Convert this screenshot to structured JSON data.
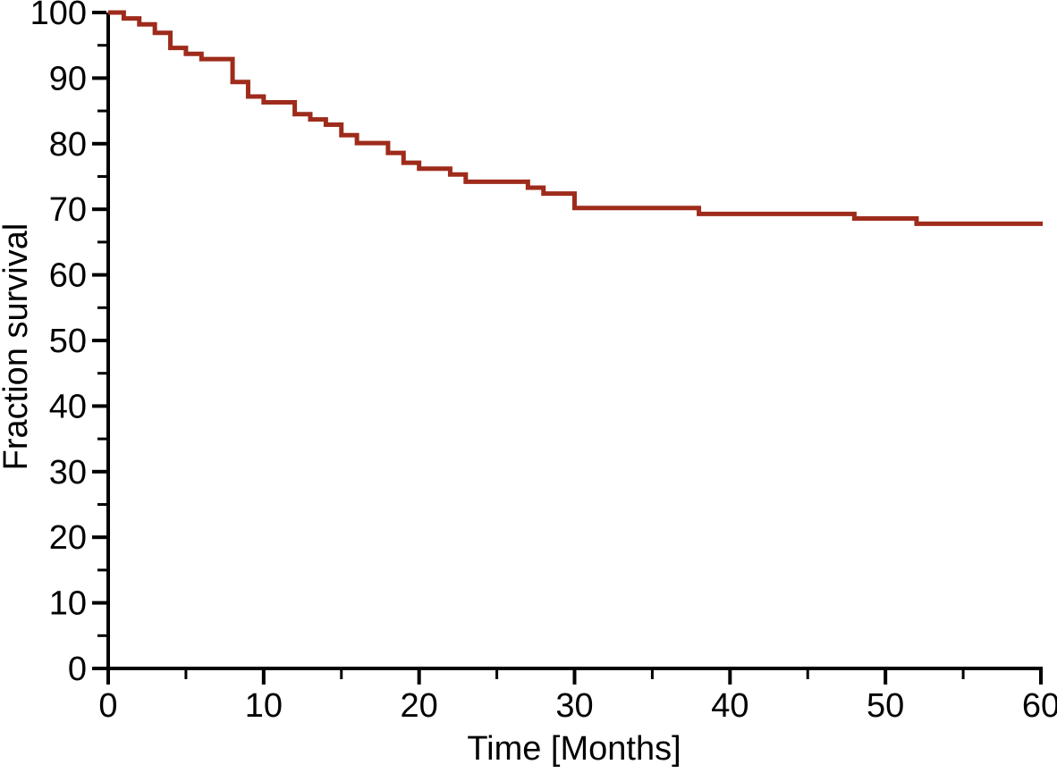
{
  "figure": {
    "background_color": "#ffffff",
    "axis_color": "#000000",
    "text_color": "#000000"
  },
  "chart_data": {
    "type": "line",
    "subtype": "kaplan-meier-step-curve",
    "title": "",
    "xlabel": "Time [Months]",
    "ylabel": "Fraction survival",
    "xlim": [
      0,
      60
    ],
    "ylim": [
      0,
      100
    ],
    "x_major_ticks": [
      0,
      10,
      20,
      30,
      40,
      50,
      60
    ],
    "x_minor_ticks": [
      5,
      15,
      25,
      35,
      45,
      55
    ],
    "y_major_ticks": [
      0,
      10,
      20,
      30,
      40,
      50,
      60,
      70,
      80,
      90,
      100
    ],
    "y_minor_ticks": [
      5,
      15,
      25,
      35,
      45,
      55,
      65,
      75,
      85,
      95
    ],
    "grid": false,
    "legend": "none",
    "series": [
      {
        "color": "#9E2B1B",
        "line_width": 5,
        "step": "post",
        "points": [
          [
            0,
            100
          ],
          [
            1,
            99.1
          ],
          [
            2,
            98.2
          ],
          [
            3,
            96.9
          ],
          [
            4,
            94.6
          ],
          [
            5,
            93.7
          ],
          [
            6,
            92.9
          ],
          [
            8,
            89.4
          ],
          [
            9,
            87.2
          ],
          [
            10,
            86.3
          ],
          [
            12,
            84.5
          ],
          [
            13,
            83.7
          ],
          [
            14,
            82.9
          ],
          [
            15,
            81.3
          ],
          [
            16,
            80.1
          ],
          [
            18,
            78.6
          ],
          [
            19,
            77.1
          ],
          [
            20,
            76.2
          ],
          [
            22,
            75.3
          ],
          [
            23,
            74.2
          ],
          [
            27,
            73.3
          ],
          [
            28,
            72.4
          ],
          [
            30,
            70.2
          ],
          [
            38,
            69.3
          ],
          [
            48,
            68.6
          ],
          [
            52,
            67.8
          ],
          [
            60,
            67.8
          ]
        ]
      }
    ]
  }
}
